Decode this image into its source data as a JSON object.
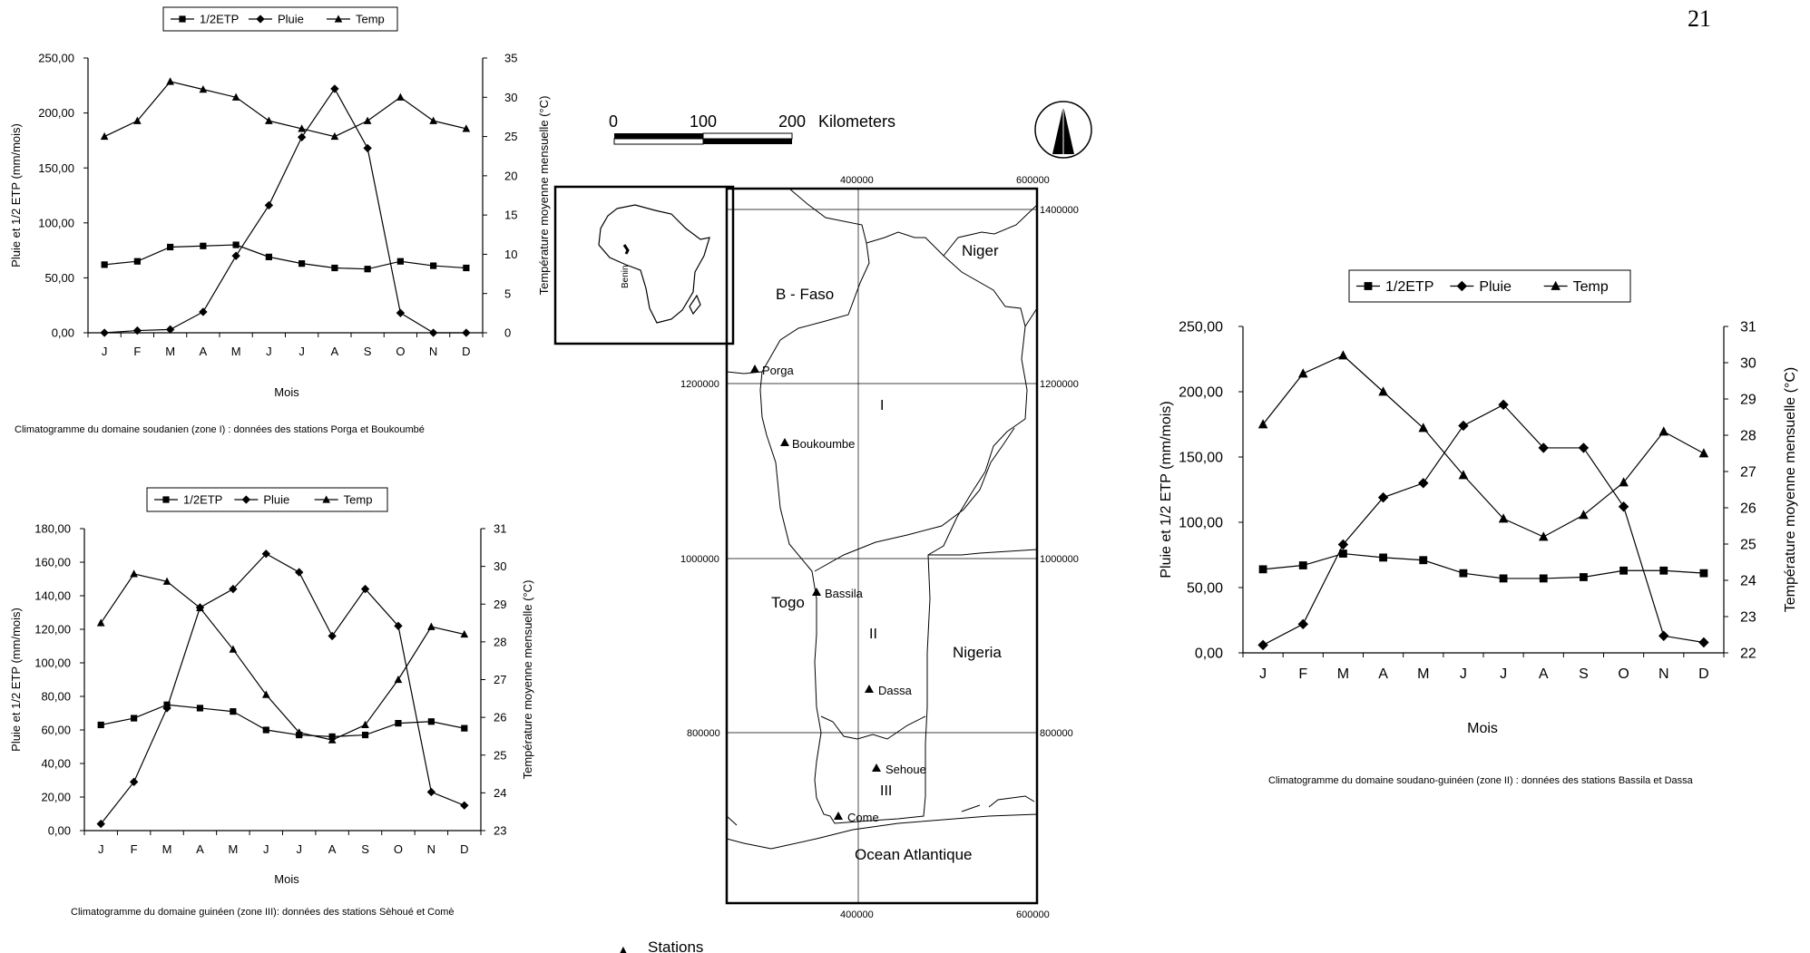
{
  "page_number": "21",
  "map": {
    "scale": {
      "ticks": [
        "0",
        "100",
        "200"
      ],
      "unit": "Kilometers"
    },
    "x_ticks": [
      "400000",
      "600000"
    ],
    "y_ticks": [
      "1400000",
      "1200000",
      "1000000",
      "800000"
    ],
    "regions": [
      "Niger",
      "B - Faso",
      "Togo",
      "Nigeria",
      "Ocean Atlantique"
    ],
    "zones": [
      "I",
      "II",
      "III"
    ],
    "stations": [
      "Porga",
      "Boukoumbe",
      "Bassila",
      "Dassa",
      "Sehoue",
      "Come"
    ],
    "inset_label": "Benin",
    "legend_symbol": "▲",
    "legend_label": "Stations",
    "north_arrow_icon": "north-arrow-icon"
  },
  "chart_data": [
    {
      "type": "line",
      "caption": "Climatogramme du domaine soudanien (zone I) : données  des stations Porga et Boukoumbé",
      "categories": [
        "J",
        "F",
        "M",
        "A",
        "M",
        "J",
        "J",
        "A",
        "S",
        "O",
        "N",
        "D"
      ],
      "xlabel": "Mois",
      "ylabel": "Pluie et 1/2 ETP (mm/mois)",
      "y2label": "Température moyenne mensuelle (°C)",
      "ylim": [
        0,
        250
      ],
      "yticks": [
        "0,00",
        "50,00",
        "100,00",
        "150,00",
        "200,00",
        "250,00"
      ],
      "y2lim": [
        0,
        35
      ],
      "y2ticks": [
        "0",
        "5",
        "10",
        "15",
        "20",
        "25",
        "30",
        "35"
      ],
      "legend_position": "top",
      "series": [
        {
          "name": "1/2ETP",
          "axis": "left",
          "marker": "square",
          "values": [
            62,
            65,
            78,
            79,
            80,
            69,
            63,
            59,
            58,
            65,
            61,
            59
          ]
        },
        {
          "name": "Pluie",
          "axis": "left",
          "marker": "diamond",
          "values": [
            0,
            2,
            3,
            19,
            70,
            116,
            178,
            222,
            168,
            18,
            0,
            0
          ]
        },
        {
          "name": "Temp",
          "axis": "right",
          "marker": "triangle",
          "values": [
            25,
            27,
            32,
            31,
            30,
            27,
            26,
            25,
            27,
            30,
            27,
            26
          ]
        }
      ]
    },
    {
      "type": "line",
      "caption": "Climatogramme du domaine guinéen (zone III): données des stations Sèhoué et  Comè",
      "categories": [
        "J",
        "F",
        "M",
        "A",
        "M",
        "J",
        "J",
        "A",
        "S",
        "O",
        "N",
        "D"
      ],
      "xlabel": "Mois",
      "ylabel": "Pluie et 1/2 ETP (mm/mois)",
      "y2label": "Température moyenne mensuelle (°C)",
      "ylim": [
        0,
        180
      ],
      "yticks": [
        "0,00",
        "20,00",
        "40,00",
        "60,00",
        "80,00",
        "100,00",
        "120,00",
        "140,00",
        "160,00",
        "180,00"
      ],
      "y2lim": [
        23,
        31
      ],
      "y2ticks": [
        "23",
        "24",
        "25",
        "26",
        "27",
        "28",
        "29",
        "30",
        "31"
      ],
      "legend_position": "top",
      "series": [
        {
          "name": "1/2ETP",
          "axis": "left",
          "marker": "square",
          "values": [
            63,
            67,
            75,
            73,
            71,
            60,
            57,
            56,
            57,
            64,
            65,
            61
          ]
        },
        {
          "name": "Pluie",
          "axis": "left",
          "marker": "diamond",
          "values": [
            4,
            29,
            73,
            133,
            144,
            165,
            154,
            116,
            144,
            122,
            23,
            15
          ]
        },
        {
          "name": "Temp",
          "axis": "right",
          "marker": "triangle",
          "values": [
            28.5,
            29.8,
            29.6,
            28.9,
            27.8,
            26.6,
            25.6,
            25.4,
            25.8,
            27.0,
            28.4,
            28.2
          ]
        }
      ]
    },
    {
      "type": "line",
      "caption": "Climatogramme du domaine soudano-guinéen (zone II) : données des stations Bassila et Dassa",
      "categories": [
        "J",
        "F",
        "M",
        "A",
        "M",
        "J",
        "J",
        "A",
        "S",
        "O",
        "N",
        "D"
      ],
      "xlabel": "Mois",
      "ylabel": "Pluie et 1/2 ETP (mm/mois)",
      "y2label": "Température moyenne mensuelle (°C)",
      "ylim": [
        0,
        250
      ],
      "yticks": [
        "0,00",
        "50,00",
        "100,00",
        "150,00",
        "200,00",
        "250,00"
      ],
      "y2lim": [
        22,
        31
      ],
      "y2ticks": [
        "22",
        "23",
        "24",
        "25",
        "26",
        "27",
        "28",
        "29",
        "30",
        "31"
      ],
      "legend_position": "top",
      "series": [
        {
          "name": "1/2ETP",
          "axis": "left",
          "marker": "square",
          "values": [
            64,
            67,
            76,
            73,
            71,
            61,
            57,
            57,
            58,
            63,
            63,
            61
          ]
        },
        {
          "name": "Pluie",
          "axis": "left",
          "marker": "diamond",
          "values": [
            6,
            22,
            83,
            119,
            130,
            174,
            190,
            157,
            157,
            112,
            13,
            8
          ]
        },
        {
          "name": "Temp",
          "axis": "right",
          "marker": "triangle",
          "values": [
            28.3,
            29.7,
            30.2,
            29.2,
            28.2,
            26.9,
            25.7,
            25.2,
            25.8,
            26.7,
            28.1,
            27.5
          ]
        }
      ]
    }
  ]
}
